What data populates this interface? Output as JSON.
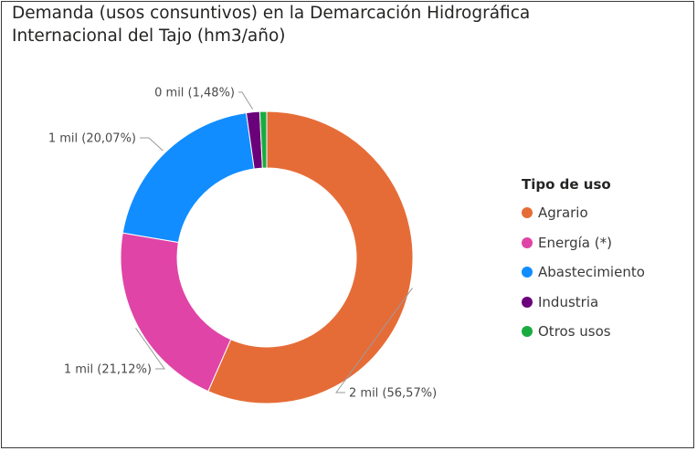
{
  "title": "Demanda (usos consuntivos) en la Demarcación Hidrográfica Internacional del Tajo (hm3/año)",
  "legend": {
    "title": "Tipo de uso"
  },
  "chart_data": {
    "type": "pie",
    "donut": true,
    "title": "Demanda (usos consuntivos) en la Demarcación Hidrográfica Internacional del Tajo (hm3/año)",
    "legend_title": "Tipo de uso",
    "legend_position": "right",
    "series": [
      {
        "name": "Agrario",
        "percent": 56.57,
        "color": "#E66C37",
        "label": "2 mil (56,57%)"
      },
      {
        "name": "Energía (*)",
        "percent": 21.12,
        "color": "#E044A7",
        "label": "1 mil (21,12%)"
      },
      {
        "name": "Abastecimiento",
        "percent": 20.07,
        "color": "#118DFF",
        "label": "1 mil (20,07%)"
      },
      {
        "name": "Industria",
        "percent": 1.48,
        "color": "#6B007B",
        "label": "0 mil (1,48%)"
      },
      {
        "name": "Otros usos",
        "percent": 0.76,
        "color": "#1AAB40",
        "label": ""
      }
    ]
  }
}
